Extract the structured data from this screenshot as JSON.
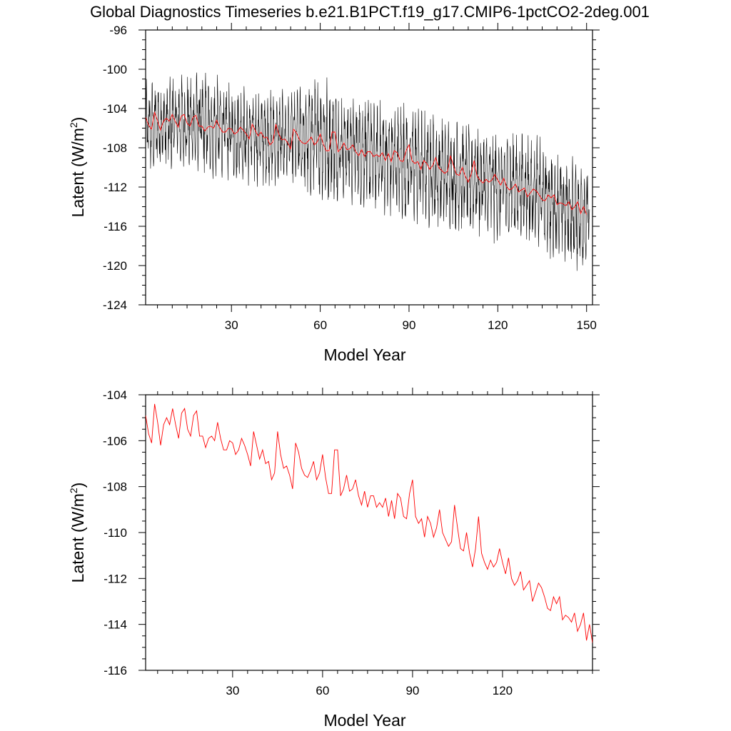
{
  "figure": {
    "title": "Global Diagnostics Timeseries b.e21.B1PCT.f19_g17.CMIP6-1pctCO2-2deg.001"
  },
  "chart_data": [
    {
      "type": "line",
      "xlabel": "Model Year",
      "ylabel": "Latent (W/m",
      "ylabel_superscript": "2",
      "ylabel_suffix": ")",
      "xlim": [
        1,
        152
      ],
      "ylim": [
        -124,
        -96
      ],
      "xticks": [
        30,
        60,
        90,
        120,
        150
      ],
      "yticks": [
        -124,
        -120,
        -116,
        -112,
        -108,
        -104,
        -100,
        -96
      ],
      "series": [
        {
          "color": "#000000",
          "kind": "monthly",
          "envelope_approx": {
            "x": [
              1,
              10,
              20,
              30,
              40,
              50,
              60,
              70,
              80,
              90,
              100,
              110,
              120,
              130,
              140,
              150
            ],
            "y_min": [
              -111,
              -111,
              -111,
              -112,
              -112,
              -112,
              -114,
              -114,
              -115,
              -116,
              -117,
              -117,
              -118,
              -118,
              -120,
              -121
            ],
            "y_max": [
              -101,
              -100,
              -100,
              -101,
              -102,
              -102,
              -100,
              -102,
              -103,
              -103,
              -104,
              -105,
              -106,
              -106,
              -108,
              -109
            ]
          }
        },
        {
          "color": "#ff0000",
          "kind": "annual",
          "ref": "annual"
        }
      ]
    },
    {
      "type": "line",
      "xlabel": "Model Year",
      "ylabel": "Latent (W/m",
      "ylabel_superscript": "2",
      "ylabel_suffix": ")",
      "xlim": [
        1,
        150
      ],
      "ylim": [
        -116,
        -104
      ],
      "xticks": [
        30,
        60,
        90,
        120
      ],
      "yticks": [
        -116,
        -114,
        -112,
        -110,
        -108,
        -106,
        -104
      ],
      "series": [
        {
          "color": "#ff0000",
          "kind": "annual",
          "ref": "annual"
        }
      ]
    }
  ],
  "annual": {
    "x": [
      1,
      2,
      3,
      4,
      5,
      6,
      7,
      8,
      9,
      10,
      11,
      12,
      13,
      14,
      15,
      16,
      17,
      18,
      19,
      20,
      21,
      22,
      23,
      24,
      25,
      26,
      27,
      28,
      29,
      30,
      31,
      32,
      33,
      34,
      35,
      36,
      37,
      38,
      39,
      40,
      41,
      42,
      43,
      44,
      45,
      46,
      47,
      48,
      49,
      50,
      51,
      52,
      53,
      54,
      55,
      56,
      57,
      58,
      59,
      60,
      61,
      62,
      63,
      64,
      65,
      66,
      67,
      68,
      69,
      70,
      71,
      72,
      73,
      74,
      75,
      76,
      77,
      78,
      79,
      80,
      81,
      82,
      83,
      84,
      85,
      86,
      87,
      88,
      89,
      90,
      91,
      92,
      93,
      94,
      95,
      96,
      97,
      98,
      99,
      100,
      101,
      102,
      103,
      104,
      105,
      106,
      107,
      108,
      109,
      110,
      111,
      112,
      113,
      114,
      115,
      116,
      117,
      118,
      119,
      120,
      121,
      122,
      123,
      124,
      125,
      126,
      127,
      128,
      129,
      130,
      131,
      132,
      133,
      134,
      135,
      136,
      137,
      138,
      139,
      140,
      141,
      142,
      143,
      144,
      145,
      146,
      147,
      148,
      149,
      150
    ],
    "y": [
      -104.9,
      -105.7,
      -106.1,
      -104.4,
      -105.2,
      -106.2,
      -105.3,
      -105.0,
      -105.3,
      -104.6,
      -105.3,
      -105.9,
      -104.8,
      -104.6,
      -105.5,
      -105.8,
      -104.9,
      -104.7,
      -105.8,
      -105.8,
      -106.3,
      -105.9,
      -105.8,
      -106.0,
      -105.2,
      -105.9,
      -106.4,
      -106.4,
      -106.0,
      -106.1,
      -106.6,
      -106.4,
      -105.9,
      -106.2,
      -106.6,
      -107.1,
      -105.6,
      -106.2,
      -106.8,
      -106.4,
      -107.0,
      -106.9,
      -107.7,
      -107.4,
      -105.6,
      -106.6,
      -107.2,
      -107.1,
      -107.5,
      -108.1,
      -106.1,
      -106.5,
      -107.2,
      -107.5,
      -107.6,
      -107.3,
      -106.9,
      -107.7,
      -107.4,
      -106.6,
      -107.6,
      -108.3,
      -108.3,
      -106.4,
      -106.4,
      -108.4,
      -108.1,
      -107.5,
      -108.2,
      -108.1,
      -107.7,
      -108.4,
      -108.8,
      -108.2,
      -108.9,
      -108.4,
      -108.4,
      -108.9,
      -108.7,
      -108.9,
      -108.5,
      -109.3,
      -108.6,
      -109.4,
      -108.3,
      -108.5,
      -109.3,
      -109.4,
      -108.3,
      -107.7,
      -109.3,
      -109.6,
      -109.4,
      -110.2,
      -109.3,
      -109.6,
      -110.2,
      -109.8,
      -109.0,
      -110.0,
      -110.3,
      -110.6,
      -110.4,
      -108.8,
      -109.8,
      -110.7,
      -110.8,
      -110.0,
      -110.9,
      -111.5,
      -110.7,
      -109.3,
      -110.9,
      -111.3,
      -111.6,
      -111.2,
      -111.5,
      -111.3,
      -110.7,
      -111.3,
      -111.8,
      -111.1,
      -112.0,
      -112.3,
      -112.1,
      -111.7,
      -112.5,
      -112.3,
      -112.1,
      -113.0,
      -112.6,
      -112.2,
      -112.4,
      -112.8,
      -113.3,
      -113.4,
      -112.8,
      -113.1,
      -112.8,
      -113.8,
      -113.6,
      -113.7,
      -113.9,
      -113.5,
      -114.3,
      -114.0,
      -113.5,
      -114.7,
      -114.0,
      -114.8
    ]
  }
}
